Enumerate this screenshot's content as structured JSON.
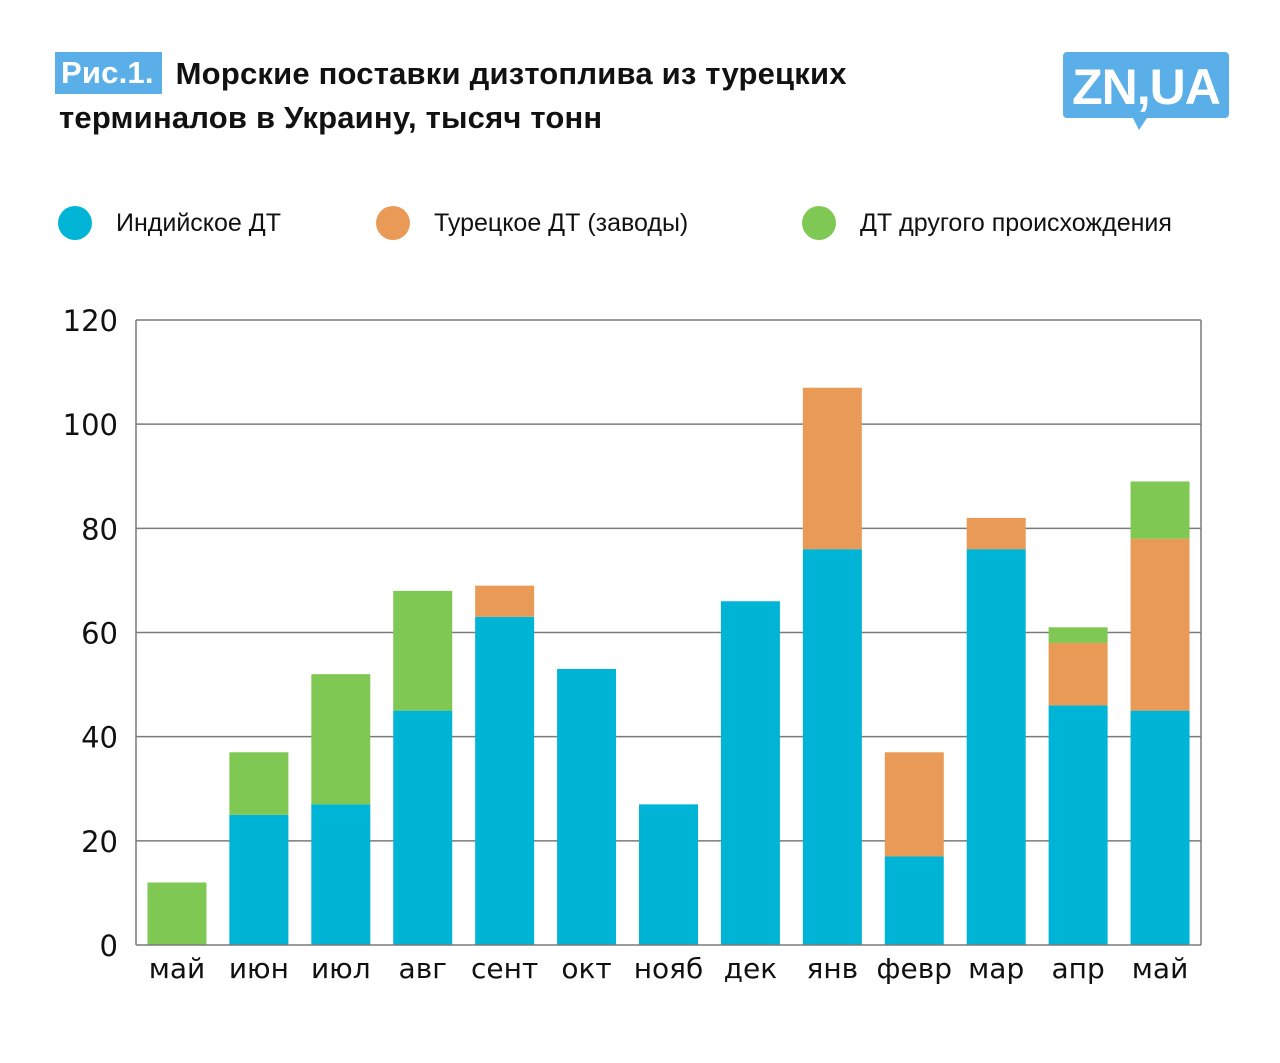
{
  "header": {
    "badge": "Рис.1.",
    "title_line1": "Морские поставки дизтоплива из турецких",
    "title_line2": "терминалов в Украину, тысяч тонн"
  },
  "logo": {
    "text": "ZN,UA",
    "color": "#5AAFE8"
  },
  "colors": {
    "indian": "#00B4D6",
    "turkish": "#E99A56",
    "other": "#80C854",
    "grid": "#7a7a7a"
  },
  "chart_data": {
    "type": "bar",
    "stacked": true,
    "title": "Морские поставки дизтоплива из турецких терминалов в Украину, тысяч тонн",
    "xlabel": "",
    "ylabel": "",
    "ylim": [
      0,
      120
    ],
    "yticks": [
      0,
      20,
      40,
      60,
      80,
      100,
      120
    ],
    "grid": true,
    "legend_position": "top",
    "categories": [
      "май",
      "июн",
      "июл",
      "авг",
      "сент",
      "окт",
      "нояб",
      "дек",
      "янв",
      "февр",
      "мар",
      "апр",
      "май"
    ],
    "series": [
      {
        "name": "Индийское ДТ",
        "color": "#00B4D6",
        "values": [
          0,
          25,
          27,
          45,
          63,
          53,
          27,
          66,
          76,
          17,
          76,
          46,
          45
        ]
      },
      {
        "name": "Турецкое ДТ (заводы)",
        "color": "#E99A56",
        "values": [
          0,
          0,
          0,
          0,
          6,
          0,
          0,
          0,
          31,
          20,
          6,
          12,
          33
        ]
      },
      {
        "name": "ДТ другого происхождения",
        "color": "#80C854",
        "values": [
          12,
          12,
          25,
          23,
          0,
          0,
          0,
          0,
          0,
          0,
          0,
          3,
          11
        ]
      }
    ]
  }
}
